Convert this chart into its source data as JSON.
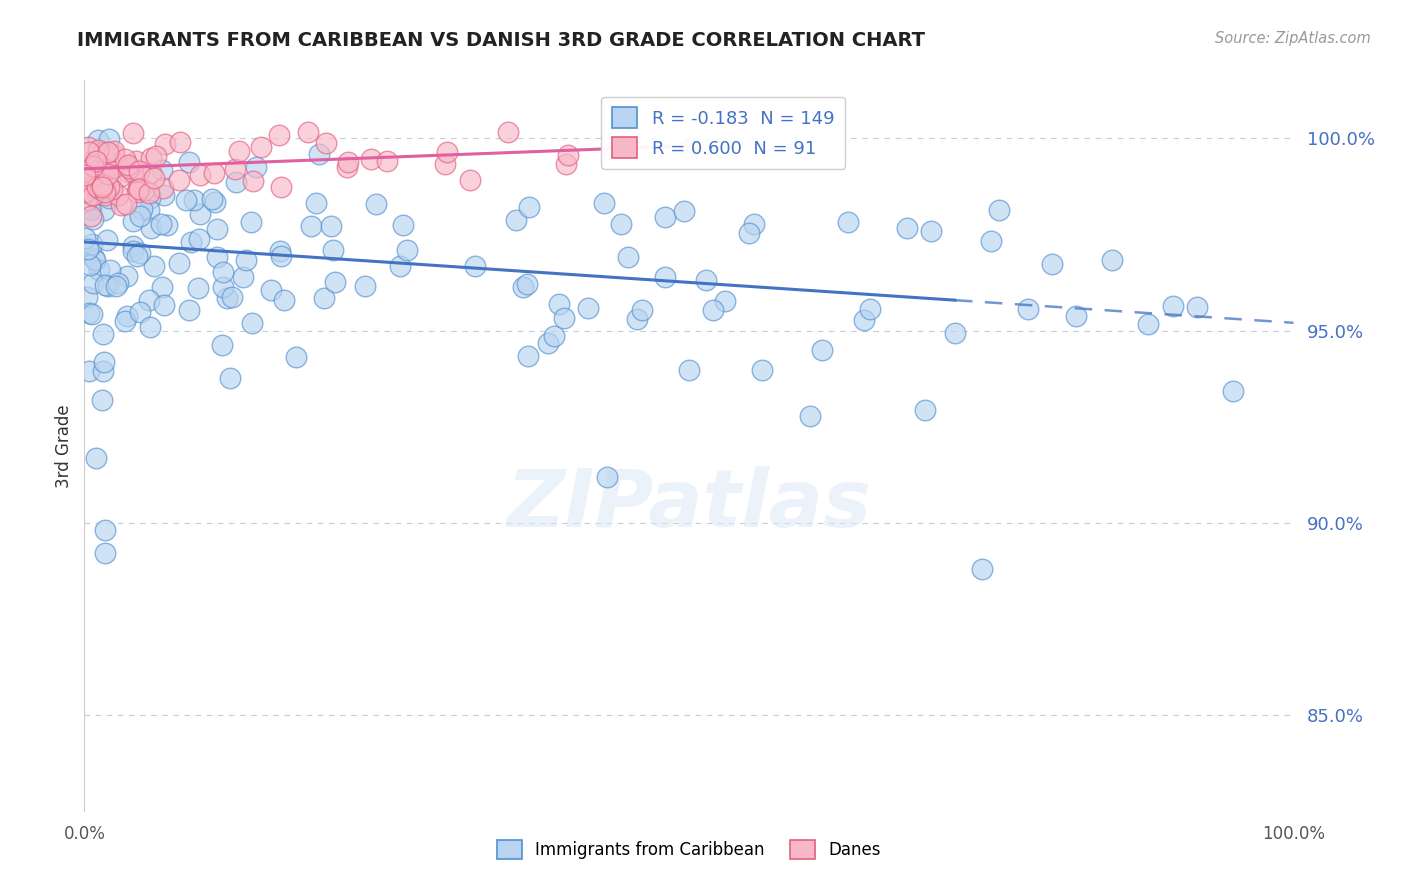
{
  "title": "IMMIGRANTS FROM CARIBBEAN VS DANISH 3RD GRADE CORRELATION CHART",
  "source_text": "Source: ZipAtlas.com",
  "ylabel": "3rd Grade",
  "y_ticks": [
    85.0,
    90.0,
    95.0,
    100.0
  ],
  "y_min": 82.5,
  "y_max": 101.5,
  "x_min": 0.0,
  "x_max": 100.0,
  "legend_R_blue": "-0.183",
  "legend_N_blue": "149",
  "legend_R_pink": "0.600",
  "legend_N_pink": "91",
  "legend_label_blue": "Immigrants from Caribbean",
  "legend_label_pink": "Danes",
  "color_blue_fill": "#b8d4f0",
  "color_blue_edge": "#5590d0",
  "color_pink_fill": "#f8b8c8",
  "color_pink_edge": "#e06080",
  "color_blue_line": "#4472c4",
  "color_pink_line": "#e060a0",
  "color_grid": "#c0cce0",
  "color_title": "#222222",
  "color_source": "#999999",
  "color_ytick": "#4472c4",
  "color_ylabel": "#333333",
  "background_color": "#ffffff",
  "blue_line_start_y": 97.3,
  "blue_line_end_y": 95.2,
  "blue_solid_end_x": 72,
  "pink_line_start_y": 99.2,
  "pink_line_end_y": 99.8,
  "pink_line_end_x": 50
}
